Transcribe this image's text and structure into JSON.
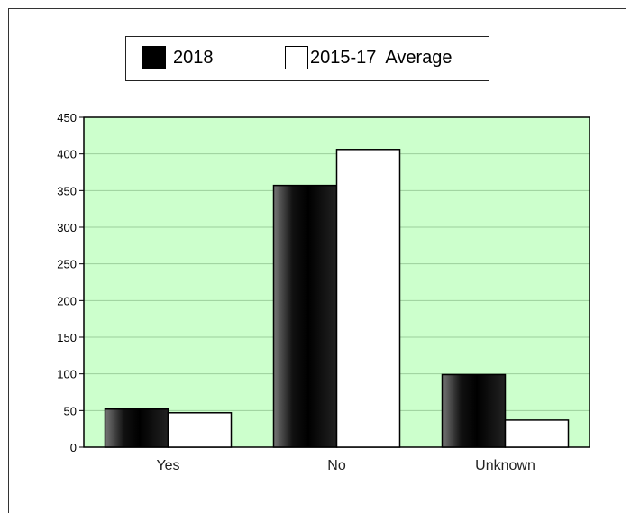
{
  "chart_data": {
    "type": "bar",
    "title": "",
    "xlabel": "",
    "ylabel": "",
    "categories": [
      "Yes",
      "No",
      "Unknown"
    ],
    "series": [
      {
        "name": "2018",
        "values": [
          52,
          357,
          99
        ],
        "color": "#000000"
      },
      {
        "name": "2015-17  Average",
        "values": [
          47,
          406,
          37
        ],
        "color": "#ffffff"
      }
    ],
    "ylim": [
      0,
      450
    ],
    "yticks": [
      0,
      50,
      100,
      150,
      200,
      250,
      300,
      350,
      400,
      450
    ],
    "grid": true,
    "legend_position": "top",
    "plot_background": "#ccffcc",
    "gridline_color": "#9ccf9c"
  }
}
